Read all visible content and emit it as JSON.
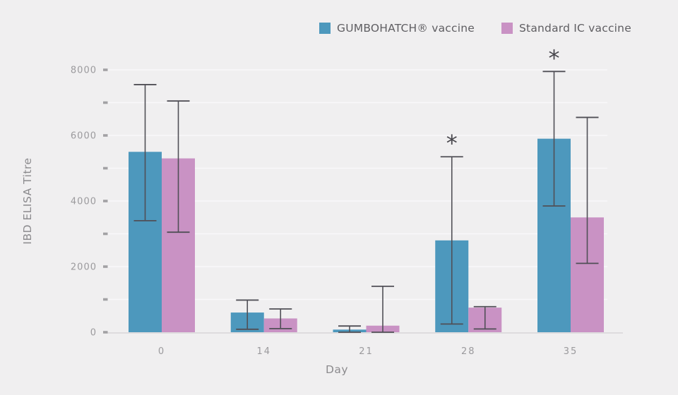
{
  "page": {
    "background_color": "#f0eff0"
  },
  "legend": {
    "items": [
      {
        "label": "GUMBOHATCH® vaccine",
        "color": "#4d98bd",
        "swatch": "blue-square-icon"
      },
      {
        "label": "Standard IC vaccine",
        "color": "#c992c4",
        "swatch": "pink-square-icon"
      }
    ]
  },
  "chart_data": {
    "type": "bar",
    "title": "",
    "xlabel": "Day",
    "ylabel": "IBD ELISA Titre",
    "categories": [
      "0",
      "14",
      "21",
      "28",
      "35"
    ],
    "y_ticks": [
      0,
      2000,
      4000,
      6000,
      8000
    ],
    "y_minor_tick_step": 1000,
    "ylim": [
      0,
      8000
    ],
    "grid": true,
    "legend_position": "top",
    "series": [
      {
        "name": "GUMBOHATCH® vaccine",
        "color": "#4d98bd",
        "values": [
          5500,
          600,
          80,
          2800,
          5900
        ],
        "err_low": [
          3400,
          90,
          0,
          250,
          3850
        ],
        "err_high": [
          7550,
          980,
          190,
          5350,
          7950
        ]
      },
      {
        "name": "Standard IC vaccine",
        "color": "#c992c4",
        "values": [
          5300,
          420,
          200,
          750,
          3500
        ],
        "err_low": [
          3050,
          110,
          0,
          100,
          2100
        ],
        "err_high": [
          7050,
          710,
          1400,
          780,
          6550
        ]
      }
    ],
    "annotations": [
      {
        "text": "*",
        "series": 0,
        "category_index": 3
      },
      {
        "text": "*",
        "series": 0,
        "category_index": 4
      }
    ],
    "colors": {
      "error_bar": "#504f56",
      "axis_line": "#d7d6d8",
      "gridline": "#f9f8fa",
      "tick_mark": "#a2a1a4",
      "tick_label": "#9b9a9d",
      "axis_title": "#8c8b8e",
      "annotation": "#48474d"
    }
  }
}
